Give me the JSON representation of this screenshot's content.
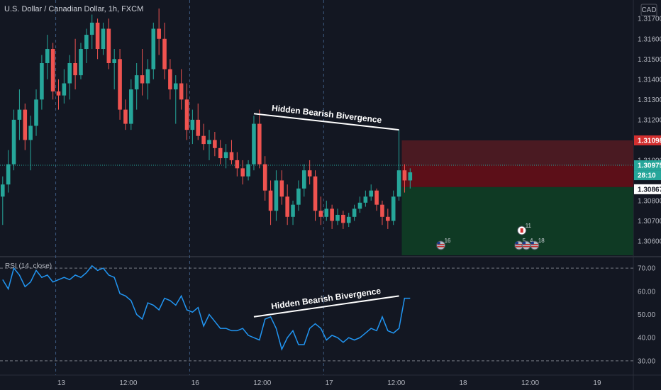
{
  "chart_data": {
    "type": "candlestick",
    "title": "U.S. Dollar / Canadian Dollar, 1h, FXCM",
    "currency": "CAD",
    "colors": {
      "up": "#26a69a",
      "down": "#ef5350",
      "rsi_line": "#2196f3",
      "background": "#131722"
    },
    "price_axis": {
      "ylim": [
        1.3053,
        1.31792
      ],
      "ticks": [
        "1.31700",
        "1.31600",
        "1.31500",
        "1.31400",
        "1.31300",
        "1.31200",
        "1.31000",
        "1.30800",
        "1.30700",
        "1.30600"
      ]
    },
    "x_axis": {
      "ticks": [
        {
          "bar": 10,
          "label": "13"
        },
        {
          "bar": 22,
          "label": "12:00"
        },
        {
          "bar": 34,
          "label": "16"
        },
        {
          "bar": 46,
          "label": "12:00"
        },
        {
          "bar": 58,
          "label": "17"
        },
        {
          "bar": 70,
          "label": "12:00"
        },
        {
          "bar": 82,
          "label": "18"
        },
        {
          "bar": 94,
          "label": "12:00"
        },
        {
          "bar": 106,
          "label": "19"
        }
      ],
      "separators": [
        9,
        33,
        57
      ]
    },
    "candles": [
      [
        1.3082,
        1.3092,
        1.3068,
        1.3088
      ],
      [
        1.3088,
        1.3105,
        1.3084,
        1.3098
      ],
      [
        1.3098,
        1.3125,
        1.3095,
        1.312
      ],
      [
        1.312,
        1.3135,
        1.311,
        1.3125
      ],
      [
        1.3125,
        1.3128,
        1.3105,
        1.311
      ],
      [
        1.311,
        1.3122,
        1.3095,
        1.3117
      ],
      [
        1.3117,
        1.3135,
        1.3112,
        1.313
      ],
      [
        1.313,
        1.3152,
        1.3125,
        1.3148
      ],
      [
        1.3148,
        1.3162,
        1.314,
        1.3155
      ],
      [
        1.3155,
        1.3158,
        1.313,
        1.3134
      ],
      [
        1.3134,
        1.314,
        1.3125,
        1.3132
      ],
      [
        1.3132,
        1.3145,
        1.3128,
        1.3138
      ],
      [
        1.3138,
        1.3152,
        1.313,
        1.3148
      ],
      [
        1.3148,
        1.316,
        1.3135,
        1.3142
      ],
      [
        1.3142,
        1.3158,
        1.314,
        1.3155
      ],
      [
        1.3155,
        1.3165,
        1.3148,
        1.3162
      ],
      [
        1.3162,
        1.3172,
        1.3155,
        1.3168
      ],
      [
        1.3168,
        1.317,
        1.315,
        1.3155
      ],
      [
        1.3155,
        1.3168,
        1.3152,
        1.3165
      ],
      [
        1.3165,
        1.317,
        1.3145,
        1.3148
      ],
      [
        1.3148,
        1.3155,
        1.3135,
        1.315
      ],
      [
        1.315,
        1.3155,
        1.312,
        1.3125
      ],
      [
        1.3125,
        1.313,
        1.3115,
        1.3118
      ],
      [
        1.3118,
        1.314,
        1.3115,
        1.3135
      ],
      [
        1.3135,
        1.3148,
        1.3125,
        1.3142
      ],
      [
        1.3142,
        1.3155,
        1.3132,
        1.3138
      ],
      [
        1.3138,
        1.315,
        1.313,
        1.3145
      ],
      [
        1.3145,
        1.3168,
        1.314,
        1.3165
      ],
      [
        1.3165,
        1.3175,
        1.3152,
        1.316
      ],
      [
        1.316,
        1.3168,
        1.314,
        1.3145
      ],
      [
        1.3145,
        1.315,
        1.313,
        1.3135
      ],
      [
        1.3135,
        1.3142,
        1.3118,
        1.3138
      ],
      [
        1.3138,
        1.3145,
        1.3125,
        1.313
      ],
      [
        1.313,
        1.3138,
        1.311,
        1.3115
      ],
      [
        1.3115,
        1.3125,
        1.3108,
        1.312
      ],
      [
        1.312,
        1.3128,
        1.311,
        1.3112
      ],
      [
        1.3112,
        1.3118,
        1.3105,
        1.3108
      ],
      [
        1.3108,
        1.3115,
        1.31,
        1.311
      ],
      [
        1.311,
        1.3114,
        1.3102,
        1.3106
      ],
      [
        1.3106,
        1.311,
        1.3098,
        1.3101
      ],
      [
        1.3101,
        1.3108,
        1.3096,
        1.3104
      ],
      [
        1.3104,
        1.311,
        1.3098,
        1.31
      ],
      [
        1.31,
        1.3104,
        1.3092,
        1.3096
      ],
      [
        1.3096,
        1.31,
        1.3088,
        1.3092
      ],
      [
        1.3092,
        1.31,
        1.309,
        1.3098
      ],
      [
        1.3098,
        1.3122,
        1.3095,
        1.3118
      ],
      [
        1.3118,
        1.3125,
        1.3096,
        1.3098
      ],
      [
        1.3098,
        1.3102,
        1.308,
        1.3085
      ],
      [
        1.3085,
        1.309,
        1.3068,
        1.3075
      ],
      [
        1.3075,
        1.3095,
        1.307,
        1.309
      ],
      [
        1.309,
        1.3095,
        1.3078,
        1.3082
      ],
      [
        1.3082,
        1.3088,
        1.3068,
        1.3072
      ],
      [
        1.3072,
        1.308,
        1.3068,
        1.3078
      ],
      [
        1.3078,
        1.309,
        1.3075,
        1.3086
      ],
      [
        1.3086,
        1.3098,
        1.3082,
        1.3095
      ],
      [
        1.3095,
        1.31,
        1.3088,
        1.3092
      ],
      [
        1.3092,
        1.3095,
        1.307,
        1.3075
      ],
      [
        1.3075,
        1.3082,
        1.3068,
        1.3072
      ],
      [
        1.3072,
        1.308,
        1.307,
        1.3076
      ],
      [
        1.3076,
        1.3078,
        1.3066,
        1.307
      ],
      [
        1.307,
        1.3076,
        1.3068,
        1.3073
      ],
      [
        1.3073,
        1.3075,
        1.3066,
        1.3069
      ],
      [
        1.3069,
        1.3074,
        1.3067,
        1.3072
      ],
      [
        1.3072,
        1.3078,
        1.307,
        1.3076
      ],
      [
        1.3076,
        1.3082,
        1.3074,
        1.3079
      ],
      [
        1.3079,
        1.3085,
        1.3077,
        1.3082
      ],
      [
        1.3082,
        1.3088,
        1.308,
        1.3085
      ],
      [
        1.3085,
        1.3086,
        1.3075,
        1.3078
      ],
      [
        1.3078,
        1.308,
        1.3068,
        1.3072
      ],
      [
        1.3072,
        1.3076,
        1.3066,
        1.307
      ],
      [
        1.307,
        1.3085,
        1.3068,
        1.3082
      ],
      [
        1.3082,
        1.3115,
        1.308,
        1.3095
      ],
      [
        1.3095,
        1.3098,
        1.3084,
        1.309
      ],
      [
        1.309,
        1.3096,
        1.3086,
        1.3094
      ]
    ],
    "rsi": {
      "label": "RSI (14, close)",
      "ylim": [
        26,
        74
      ],
      "levels": [
        70,
        30
      ],
      "ticks": [
        "70.00",
        "60.00",
        "50.00",
        "40.00",
        "30.00"
      ],
      "values": [
        65,
        61,
        70,
        67,
        62,
        64,
        69,
        66,
        67,
        64,
        65,
        66,
        65,
        67,
        66,
        68,
        71,
        69,
        70,
        67,
        66,
        59,
        58,
        56,
        50,
        48,
        55,
        54,
        52,
        57,
        56,
        54,
        58,
        52,
        51,
        53,
        45,
        50,
        47,
        44,
        44,
        43,
        43,
        44,
        41,
        40,
        39,
        48,
        49,
        44,
        35,
        40,
        43,
        37,
        37,
        44,
        46,
        44,
        39,
        41,
        40,
        38,
        40,
        39,
        40,
        42,
        44,
        43,
        49,
        43,
        42,
        44,
        57,
        57
      ]
    },
    "annotations": {
      "price_divergence_text": "Hidden Bearish Bivergence",
      "rsi_divergence_text": "Hidden Bearish Bivergence",
      "price_line": {
        "from": [
          45,
          1.3123
        ],
        "to": [
          71,
          1.3115
        ]
      },
      "rsi_line": {
        "from": [
          45,
          49
        ],
        "to": [
          71,
          58
        ]
      }
    },
    "position": {
      "stop_top": 1.31098,
      "entry": 1.30975,
      "target_line": 1.30867,
      "target_bottom": 1.3053,
      "start_bar": 71.5
    },
    "price_labels": {
      "stop": "1.31098",
      "current": "1.30975",
      "countdown": "28:10",
      "target": "1.30867"
    },
    "event_markers": [
      {
        "bar": 78.5,
        "label": "16",
        "flag": "us"
      },
      {
        "bar": 93,
        "label": "11",
        "flag": "ca"
      },
      {
        "bar": 92.5,
        "label": "5",
        "flag": "us"
      },
      {
        "bar": 93.8,
        "label": "4",
        "flag": "us"
      },
      {
        "bar": 95.3,
        "label": "18",
        "flag": "us"
      }
    ]
  }
}
